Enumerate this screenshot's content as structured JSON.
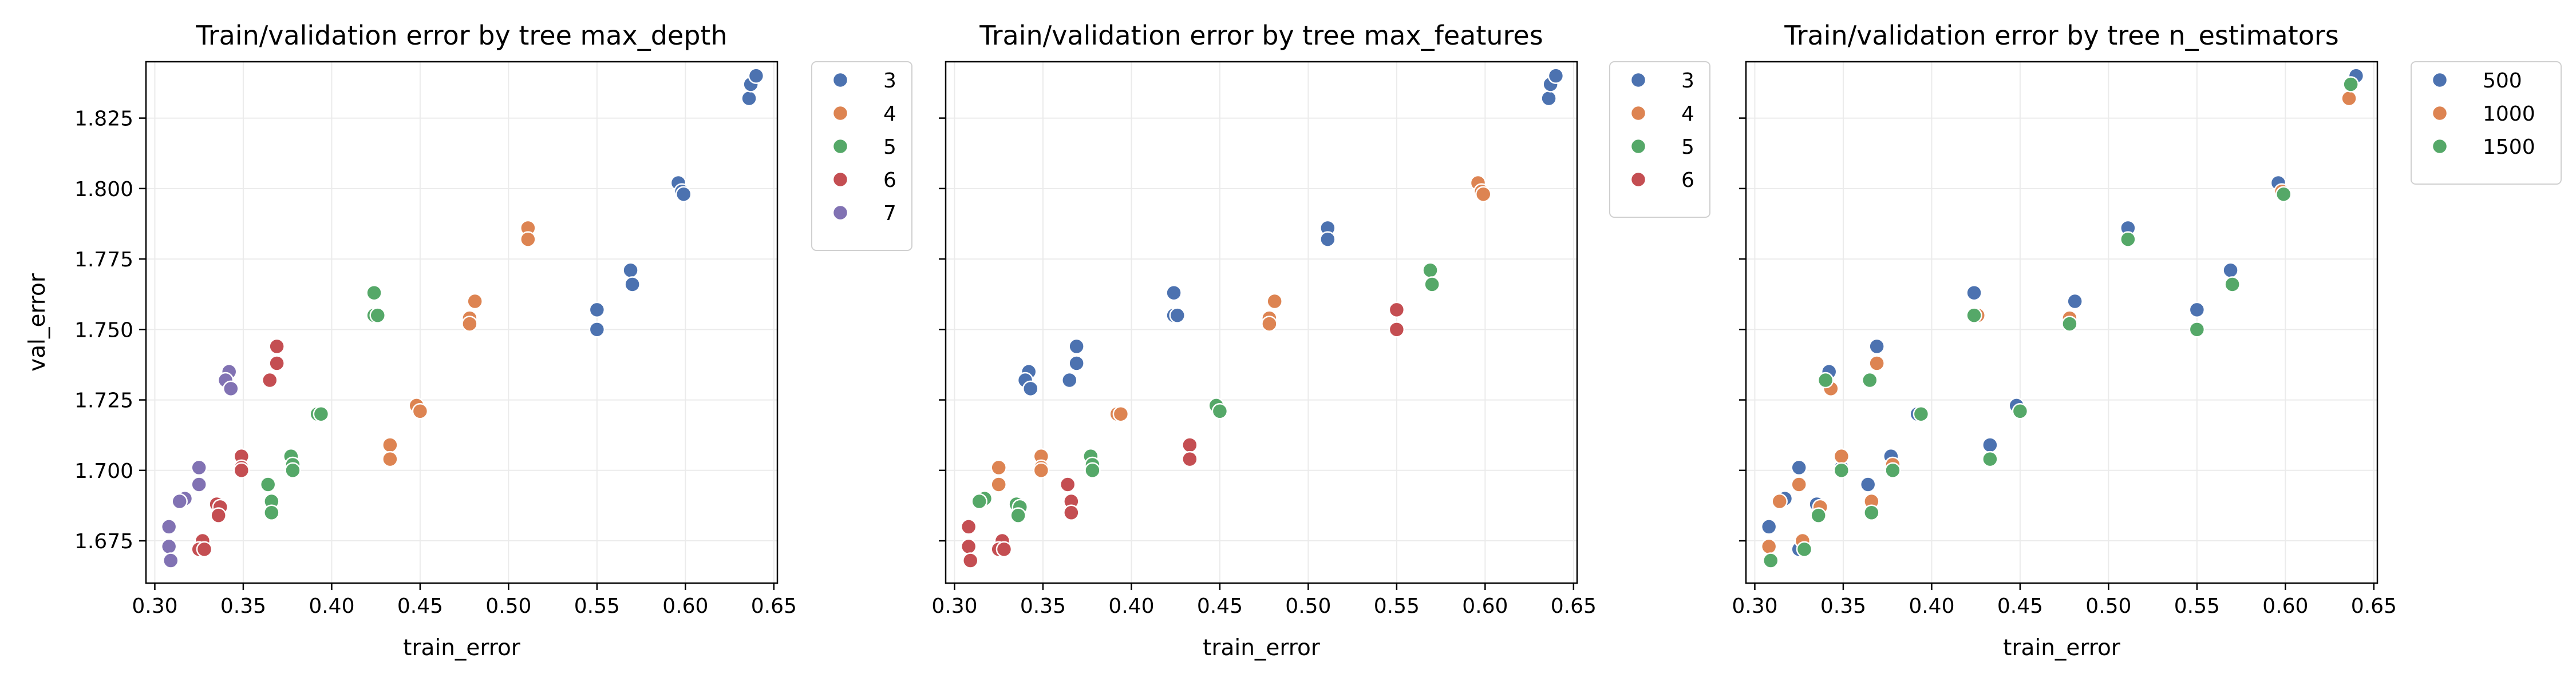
{
  "palette": [
    "#4c72b0",
    "#dd8452",
    "#55a868",
    "#c44e52",
    "#8172b3"
  ],
  "chart_data": [
    {
      "type": "scatter",
      "title": "Train/validation error by tree max_depth",
      "xlabel": "train_error",
      "ylabel": "val_error",
      "xlim": [
        0.295,
        0.652
      ],
      "ylim": [
        1.66,
        1.845
      ],
      "xticks": [
        "0.30",
        "0.35",
        "0.40",
        "0.45",
        "0.50",
        "0.55",
        "0.60",
        "0.65"
      ],
      "yticks": [
        "1.675",
        "1.700",
        "1.725",
        "1.750",
        "1.775",
        "1.800",
        "1.825"
      ],
      "grid": true,
      "legend": "outside-right",
      "series": [
        {
          "name": "3",
          "points": [
            [
              0.636,
              1.832
            ],
            [
              0.637,
              1.837
            ],
            [
              0.64,
              1.84
            ],
            [
              0.596,
              1.802
            ],
            [
              0.598,
              1.799
            ],
            [
              0.599,
              1.798
            ],
            [
              0.569,
              1.771
            ],
            [
              0.57,
              1.766
            ],
            [
              0.55,
              1.757
            ],
            [
              0.55,
              1.75
            ]
          ]
        },
        {
          "name": "4",
          "points": [
            [
              0.511,
              1.786
            ],
            [
              0.511,
              1.782
            ],
            [
              0.481,
              1.76
            ],
            [
              0.478,
              1.754
            ],
            [
              0.478,
              1.752
            ],
            [
              0.448,
              1.723
            ],
            [
              0.45,
              1.721
            ],
            [
              0.433,
              1.709
            ],
            [
              0.433,
              1.704
            ]
          ]
        },
        {
          "name": "5",
          "points": [
            [
              0.424,
              1.763
            ],
            [
              0.424,
              1.755
            ],
            [
              0.426,
              1.755
            ],
            [
              0.392,
              1.72
            ],
            [
              0.394,
              1.72
            ],
            [
              0.377,
              1.705
            ],
            [
              0.378,
              1.702
            ],
            [
              0.378,
              1.7
            ],
            [
              0.364,
              1.695
            ],
            [
              0.366,
              1.689
            ],
            [
              0.366,
              1.685
            ]
          ]
        },
        {
          "name": "6",
          "points": [
            [
              0.369,
              1.744
            ],
            [
              0.369,
              1.738
            ],
            [
              0.365,
              1.732
            ],
            [
              0.349,
              1.705
            ],
            [
              0.349,
              1.701
            ],
            [
              0.349,
              1.7
            ],
            [
              0.335,
              1.688
            ],
            [
              0.337,
              1.687
            ],
            [
              0.336,
              1.684
            ],
            [
              0.327,
              1.675
            ],
            [
              0.325,
              1.672
            ],
            [
              0.328,
              1.672
            ]
          ]
        },
        {
          "name": "7",
          "points": [
            [
              0.342,
              1.735
            ],
            [
              0.34,
              1.732
            ],
            [
              0.343,
              1.729
            ],
            [
              0.325,
              1.701
            ],
            [
              0.325,
              1.695
            ],
            [
              0.317,
              1.69
            ],
            [
              0.314,
              1.689
            ],
            [
              0.308,
              1.68
            ],
            [
              0.308,
              1.673
            ],
            [
              0.309,
              1.668
            ]
          ]
        }
      ]
    },
    {
      "type": "scatter",
      "title": "Train/validation error by tree max_features",
      "xlabel": "train_error",
      "ylabel": "",
      "xlim": [
        0.295,
        0.652
      ],
      "ylim": [
        1.66,
        1.845
      ],
      "xticks": [
        "0.30",
        "0.35",
        "0.40",
        "0.45",
        "0.50",
        "0.55",
        "0.60",
        "0.65"
      ],
      "yticks": [],
      "grid": true,
      "legend": "outside-right",
      "series": [
        {
          "name": "3",
          "points": [
            [
              0.636,
              1.832
            ],
            [
              0.637,
              1.837
            ],
            [
              0.64,
              1.84
            ],
            [
              0.511,
              1.786
            ],
            [
              0.511,
              1.782
            ],
            [
              0.424,
              1.763
            ],
            [
              0.424,
              1.755
            ],
            [
              0.426,
              1.755
            ],
            [
              0.369,
              1.744
            ],
            [
              0.369,
              1.738
            ],
            [
              0.365,
              1.732
            ],
            [
              0.342,
              1.735
            ],
            [
              0.34,
              1.732
            ],
            [
              0.343,
              1.729
            ]
          ]
        },
        {
          "name": "4",
          "points": [
            [
              0.596,
              1.802
            ],
            [
              0.598,
              1.799
            ],
            [
              0.599,
              1.798
            ],
            [
              0.481,
              1.76
            ],
            [
              0.478,
              1.754
            ],
            [
              0.478,
              1.752
            ],
            [
              0.392,
              1.72
            ],
            [
              0.394,
              1.72
            ],
            [
              0.349,
              1.705
            ],
            [
              0.349,
              1.701
            ],
            [
              0.349,
              1.7
            ],
            [
              0.325,
              1.701
            ],
            [
              0.325,
              1.695
            ]
          ]
        },
        {
          "name": "5",
          "points": [
            [
              0.569,
              1.771
            ],
            [
              0.57,
              1.766
            ],
            [
              0.448,
              1.723
            ],
            [
              0.45,
              1.721
            ],
            [
              0.377,
              1.705
            ],
            [
              0.378,
              1.702
            ],
            [
              0.378,
              1.7
            ],
            [
              0.335,
              1.688
            ],
            [
              0.337,
              1.687
            ],
            [
              0.336,
              1.684
            ],
            [
              0.317,
              1.69
            ],
            [
              0.314,
              1.689
            ]
          ]
        },
        {
          "name": "6",
          "points": [
            [
              0.55,
              1.757
            ],
            [
              0.55,
              1.75
            ],
            [
              0.433,
              1.709
            ],
            [
              0.433,
              1.704
            ],
            [
              0.364,
              1.695
            ],
            [
              0.366,
              1.689
            ],
            [
              0.366,
              1.685
            ],
            [
              0.327,
              1.675
            ],
            [
              0.325,
              1.672
            ],
            [
              0.328,
              1.672
            ],
            [
              0.308,
              1.68
            ],
            [
              0.308,
              1.673
            ],
            [
              0.309,
              1.668
            ]
          ]
        }
      ]
    },
    {
      "type": "scatter",
      "title": "Train/validation error by tree n_estimators",
      "xlabel": "train_error",
      "ylabel": "",
      "xlim": [
        0.295,
        0.652
      ],
      "ylim": [
        1.66,
        1.845
      ],
      "xticks": [
        "0.30",
        "0.35",
        "0.40",
        "0.45",
        "0.50",
        "0.55",
        "0.60",
        "0.65"
      ],
      "yticks": [],
      "grid": true,
      "legend": "outside-right",
      "series": [
        {
          "name": "500",
          "points": [
            [
              0.64,
              1.84
            ],
            [
              0.596,
              1.802
            ],
            [
              0.569,
              1.771
            ],
            [
              0.55,
              1.757
            ],
            [
              0.511,
              1.786
            ],
            [
              0.481,
              1.76
            ],
            [
              0.448,
              1.723
            ],
            [
              0.433,
              1.709
            ],
            [
              0.424,
              1.763
            ],
            [
              0.392,
              1.72
            ],
            [
              0.377,
              1.705
            ],
            [
              0.364,
              1.695
            ],
            [
              0.369,
              1.744
            ],
            [
              0.342,
              1.735
            ],
            [
              0.349,
              1.701
            ],
            [
              0.335,
              1.688
            ],
            [
              0.325,
              1.672
            ],
            [
              0.325,
              1.701
            ],
            [
              0.317,
              1.69
            ],
            [
              0.308,
              1.68
            ]
          ]
        },
        {
          "name": "1000",
          "points": [
            [
              0.636,
              1.832
            ],
            [
              0.598,
              1.799
            ],
            [
              0.478,
              1.754
            ],
            [
              0.426,
              1.755
            ],
            [
              0.433,
              1.704
            ],
            [
              0.369,
              1.738
            ],
            [
              0.343,
              1.729
            ],
            [
              0.366,
              1.689
            ],
            [
              0.378,
              1.702
            ],
            [
              0.349,
              1.705
            ],
            [
              0.337,
              1.687
            ],
            [
              0.327,
              1.675
            ],
            [
              0.325,
              1.695
            ],
            [
              0.314,
              1.689
            ],
            [
              0.308,
              1.673
            ]
          ]
        },
        {
          "name": "1500",
          "points": [
            [
              0.637,
              1.837
            ],
            [
              0.599,
              1.798
            ],
            [
              0.57,
              1.766
            ],
            [
              0.55,
              1.75
            ],
            [
              0.511,
              1.782
            ],
            [
              0.478,
              1.752
            ],
            [
              0.45,
              1.721
            ],
            [
              0.433,
              1.704
            ],
            [
              0.424,
              1.755
            ],
            [
              0.394,
              1.72
            ],
            [
              0.378,
              1.7
            ],
            [
              0.366,
              1.685
            ],
            [
              0.365,
              1.732
            ],
            [
              0.34,
              1.732
            ],
            [
              0.349,
              1.7
            ],
            [
              0.336,
              1.684
            ],
            [
              0.328,
              1.672
            ],
            [
              0.309,
              1.668
            ]
          ]
        }
      ]
    }
  ]
}
